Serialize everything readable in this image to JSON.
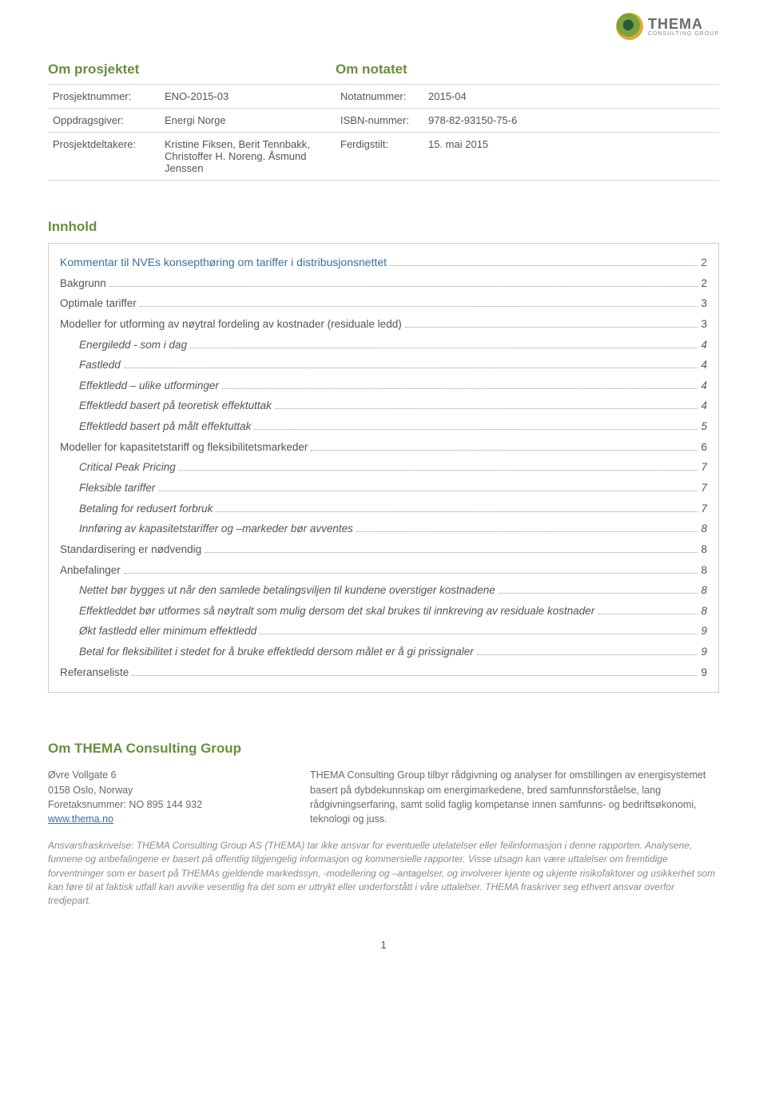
{
  "logo": {
    "name": "THEMA",
    "subtitle": "CONSULTING GROUP"
  },
  "headings": {
    "om_prosjektet": "Om prosjektet",
    "om_notatet": "Om notatet",
    "innhold": "Innhold",
    "om_thema": "Om THEMA Consulting Group"
  },
  "meta": {
    "rows": [
      {
        "label1": "Prosjektnummer:",
        "val1": "ENO-2015-03",
        "label2": "Notatnummer:",
        "val2": "2015-04"
      },
      {
        "label1": "Oppdragsgiver:",
        "val1": "Energi Norge",
        "label2": "ISBN-nummer:",
        "val2": "978-82-93150-75-6"
      },
      {
        "label1": "Prosjektdeltakere:",
        "val1": "Kristine Fiksen, Berit Tennbakk, Christoffer H. Noreng. Åsmund Jenssen",
        "label2": "Ferdigstilt:",
        "val2": "15. mai 2015"
      }
    ]
  },
  "toc": [
    {
      "level": 0,
      "label": "Kommentar til NVEs konsepthøring om tariffer i distribusjonsnettet",
      "page": "2"
    },
    {
      "level": 1,
      "label": "Bakgrunn",
      "page": "2"
    },
    {
      "level": 1,
      "label": "Optimale tariffer",
      "page": "3"
    },
    {
      "level": 1,
      "label": "Modeller for utforming av nøytral fordeling av kostnader (residuale ledd)",
      "page": "3"
    },
    {
      "level": 2,
      "label": "Energiledd - som i dag",
      "page": "4"
    },
    {
      "level": 2,
      "label": "Fastledd",
      "page": "4"
    },
    {
      "level": 2,
      "label": "Effektledd – ulike utforminger",
      "page": "4"
    },
    {
      "level": 2,
      "label": "Effektledd basert på teoretisk effektuttak",
      "page": "4"
    },
    {
      "level": 2,
      "label": "Effektledd basert på målt effektuttak",
      "page": "5"
    },
    {
      "level": 1,
      "label": "Modeller for kapasitetstariff og fleksibilitetsmarkeder",
      "page": "6"
    },
    {
      "level": 2,
      "label": "Critical Peak Pricing",
      "page": "7"
    },
    {
      "level": 2,
      "label": "Fleksible tariffer",
      "page": "7"
    },
    {
      "level": 2,
      "label": "Betaling for redusert forbruk",
      "page": "7"
    },
    {
      "level": 2,
      "label": "Innføring av kapasitetstariffer og –markeder bør avventes",
      "page": "8"
    },
    {
      "level": 1,
      "label": "Standardisering er nødvendig",
      "page": "8"
    },
    {
      "level": 1,
      "label": "Anbefalinger",
      "page": "8"
    },
    {
      "level": 2,
      "label": "Nettet bør bygges ut når den samlede betalingsviljen til kundene overstiger kostnadene",
      "page": "8"
    },
    {
      "level": 2,
      "label": "Effektleddet bør utformes så nøytralt som mulig dersom det skal brukes til innkreving av residuale kostnader",
      "page": "8"
    },
    {
      "level": 2,
      "label": "Økt fastledd eller minimum effektledd",
      "page": "9"
    },
    {
      "level": 2,
      "label": "Betal for fleksibilitet i stedet for å bruke effektledd dersom målet er å gi prissignaler",
      "page": "9"
    },
    {
      "level": 1,
      "label": "Referanseliste",
      "page": "9"
    }
  ],
  "about": {
    "address1": "Øvre Vollgate 6",
    "address2": "0158 Oslo, Norway",
    "orgnr": "Foretaksnummer: NO 895 144 932",
    "website": "www.thema.no",
    "description": "THEMA Consulting Group tilbyr rådgivning og analyser for omstillingen av energisystemet basert på dybdekunnskap om energimarkedene, bred samfunnsforståelse, lang rådgivningserfaring, samt solid faglig kompetanse innen samfunns- og bedriftsøkonomi, teknologi og juss."
  },
  "disclaimer": "Ansvarsfraskrivelse: THEMA Consulting Group AS (THEMA) tar ikke ansvar for eventuelle utelatelser eller feilinformasjon i denne rapporten. Analysene, funnene og anbefalingene er basert på offentlig tilgjengelig informasjon og kommersielle rapporter. Visse utsagn kan være uttalelser om fremtidige forventninger som er basert på THEMAs gjeldende markedssyn, -modellering og –antagelser, og involverer kjente og ukjente risikofaktorer og usikkerhet som kan føre til at faktisk utfall kan avvike vesentlig fra det som er uttrykt eller underforstått i våre uttalelser. THEMA fraskriver seg ethvert ansvar overfor tredjepart.",
  "page_number": "1",
  "colors": {
    "heading_green": "#6b8e3d",
    "link_blue": "#3b6fa0",
    "text_gray": "#555555",
    "border_gray": "#cfcfcf",
    "disclaimer_gray": "#8a8a8a"
  }
}
